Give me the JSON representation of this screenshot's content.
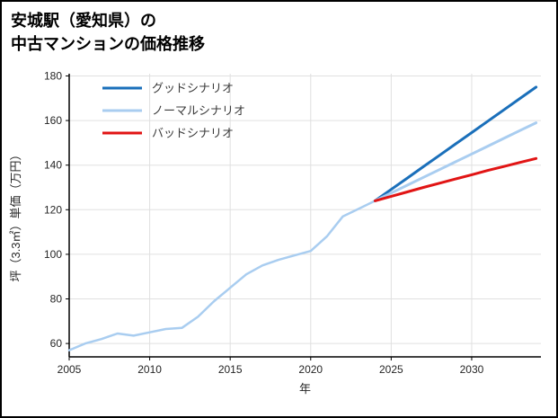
{
  "title": {
    "line1": "安城駅（愛知県）の",
    "line2": "中古マンションの価格推移"
  },
  "chart_data": {
    "type": "line",
    "title": "安城駅（愛知県）の中古マンションの価格推移",
    "xlabel": "年",
    "ylabel": "坪（3.3㎡）単価（万円）",
    "xlim": [
      2005,
      2034.3
    ],
    "ylim": [
      54,
      181
    ],
    "xticks": [
      2005,
      2010,
      2015,
      2020,
      2025,
      2030
    ],
    "yticks": [
      60,
      80,
      100,
      120,
      140,
      160,
      180
    ],
    "grid": true,
    "grid_color": "#e0e0e0",
    "axis_color": "#000000",
    "legend_position": "top-left",
    "series": [
      {
        "key": "history",
        "name": "",
        "legend": false,
        "color": "#a9cdf0",
        "width": 2.5,
        "x": [
          2005,
          2006,
          2007,
          2008,
          2009,
          2010,
          2011,
          2012,
          2013,
          2014,
          2015,
          2016,
          2017,
          2018,
          2019,
          2020,
          2021,
          2022,
          2023,
          2024
        ],
        "values": [
          57,
          60,
          62,
          64.5,
          63.5,
          65,
          66.5,
          67,
          72,
          79,
          85,
          91,
          95,
          97.5,
          99.5,
          101.5,
          108,
          117,
          120.5,
          124
        ]
      },
      {
        "key": "good",
        "name": "グッドシナリオ",
        "legend": true,
        "color": "#1a6fba",
        "width": 3,
        "x": [
          2024,
          2025,
          2026,
          2027,
          2028,
          2029,
          2030,
          2031,
          2032,
          2033,
          2034
        ],
        "values": [
          124,
          129.1,
          134.2,
          139.3,
          144.4,
          149.5,
          154.6,
          159.7,
          164.8,
          169.9,
          175
        ]
      },
      {
        "key": "normal",
        "name": "ノーマルシナリオ",
        "legend": true,
        "color": "#a9cdf0",
        "width": 3,
        "x": [
          2024,
          2025,
          2026,
          2027,
          2028,
          2029,
          2030,
          2031,
          2032,
          2033,
          2034
        ],
        "values": [
          124,
          127.5,
          131,
          134.5,
          138,
          141.5,
          145,
          148.5,
          152,
          155.5,
          159
        ]
      },
      {
        "key": "bad",
        "name": "バッドシナリオ",
        "legend": true,
        "color": "#e11414",
        "width": 3,
        "x": [
          2024,
          2025,
          2026,
          2027,
          2028,
          2029,
          2030,
          2031,
          2032,
          2033,
          2034
        ],
        "values": [
          124,
          126,
          128,
          130,
          131.9,
          133.8,
          135.7,
          137.6,
          139.4,
          141.2,
          143
        ]
      }
    ]
  }
}
